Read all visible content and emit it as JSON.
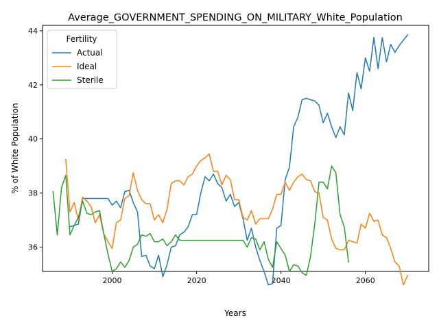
{
  "chart_data": {
    "type": "line",
    "title": "Average_GOVERNMENT_SPENDING_ON_MILITARY_White_Population",
    "xlabel": "Years",
    "ylabel": "% of White Population",
    "xlim": [
      1983.5,
      2075
    ],
    "ylim": [
      35.1,
      44.2
    ],
    "xticks": [
      2000,
      2020,
      2040,
      2060
    ],
    "yticks": [
      36,
      38,
      40,
      42,
      44
    ],
    "grid": false,
    "legend": {
      "title": "Fertility",
      "placement": "upper-left"
    },
    "series": [
      {
        "name": "Actual",
        "color": "#1f77b4",
        "x": [
          1990,
          1991,
          1992,
          1993,
          1994,
          1995,
          1996,
          1997,
          1998,
          1999,
          2000,
          2001,
          2002,
          2003,
          2004,
          2005,
          2006,
          2007,
          2008,
          2009,
          2010,
          2011,
          2012,
          2013,
          2014,
          2015,
          2016,
          2017,
          2018,
          2019,
          2020,
          2021,
          2022,
          2023,
          2024,
          2025,
          2026,
          2027,
          2028,
          2029,
          2030,
          2031,
          2032,
          2033,
          2034,
          2035,
          2036,
          2037,
          2038,
          2039,
          2040,
          2041,
          2042,
          2043,
          2044,
          2045,
          2046,
          2047,
          2048,
          2049,
          2050,
          2051,
          2052,
          2053,
          2054,
          2055,
          2056,
          2057,
          2058,
          2059,
          2060,
          2061,
          2062,
          2063,
          2064,
          2065,
          2066,
          2067,
          2068,
          2069,
          2070
        ],
        "y": [
          36.75,
          36.8,
          36.85,
          37.8,
          37.8,
          37.8,
          37.8,
          37.8,
          37.8,
          37.8,
          37.55,
          37.7,
          37.45,
          38.05,
          38.1,
          37.65,
          37.3,
          35.65,
          35.7,
          35.3,
          35.2,
          35.7,
          34.9,
          35.35,
          36.0,
          36.05,
          36.45,
          36.55,
          36.75,
          37.2,
          37.2,
          38.0,
          38.6,
          38.45,
          38.7,
          38.35,
          38.2,
          37.7,
          37.95,
          37.5,
          37.65,
          37.05,
          36.25,
          36.7,
          36.0,
          35.5,
          35.1,
          34.6,
          34.65,
          36.7,
          36.8,
          38.5,
          38.95,
          40.45,
          40.8,
          41.45,
          41.5,
          41.45,
          41.4,
          41.25,
          40.6,
          40.95,
          40.45,
          40.05,
          40.45,
          40.15,
          41.7,
          41.05,
          42.45,
          41.85,
          43.0,
          42.5,
          43.75,
          42.6,
          43.75,
          42.85,
          43.5,
          43.2,
          43.45,
          43.65,
          43.85
        ]
      },
      {
        "name": "Ideal",
        "color": "#ff7f0e",
        "x": [
          1989,
          1990,
          1991,
          1992,
          1993,
          1994,
          1995,
          1996,
          1997,
          1998,
          1999,
          2000,
          2001,
          2002,
          2003,
          2004,
          2005,
          2006,
          2007,
          2008,
          2009,
          2010,
          2011,
          2012,
          2013,
          2014,
          2015,
          2016,
          2017,
          2018,
          2019,
          2020,
          2021,
          2022,
          2023,
          2024,
          2025,
          2026,
          2027,
          2028,
          2029,
          2030,
          2031,
          2032,
          2033,
          2034,
          2035,
          2036,
          2037,
          2038,
          2039,
          2040,
          2041,
          2042,
          2043,
          2044,
          2045,
          2046,
          2047,
          2048,
          2049,
          2050,
          2051,
          2052,
          2053,
          2054,
          2055,
          2056,
          2057,
          2058,
          2059,
          2060,
          2061,
          2062,
          2063,
          2064,
          2065,
          2066,
          2067,
          2068,
          2069,
          2070
        ],
        "y": [
          39.25,
          37.3,
          37.65,
          37.0,
          37.85,
          37.7,
          37.5,
          36.9,
          37.2,
          36.5,
          36.2,
          35.95,
          36.9,
          37.0,
          37.8,
          37.9,
          38.75,
          38.1,
          37.75,
          37.6,
          37.6,
          37.0,
          37.2,
          36.9,
          37.4,
          38.35,
          38.45,
          38.45,
          38.3,
          38.6,
          38.7,
          39.0,
          39.2,
          39.3,
          39.45,
          38.8,
          38.8,
          38.3,
          38.65,
          38.5,
          37.75,
          37.75,
          37.1,
          37.0,
          37.35,
          36.85,
          37.05,
          37.05,
          37.05,
          37.4,
          37.95,
          37.95,
          38.4,
          38.1,
          38.4,
          38.6,
          38.7,
          38.5,
          38.45,
          38.05,
          38.0,
          37.1,
          37.0,
          36.3,
          35.95,
          35.9,
          35.9,
          36.25,
          36.2,
          36.15,
          36.85,
          36.7,
          37.25,
          36.95,
          37.0,
          36.45,
          36.35,
          35.95,
          35.45,
          35.3,
          34.6,
          34.95
        ]
      },
      {
        "name": "Sterile",
        "color": "#2ca02c",
        "x": [
          1986,
          1987,
          1988,
          1989,
          1990,
          1991,
          1992,
          1993,
          1994,
          1995,
          1996,
          1997,
          1998,
          1999,
          2000,
          2001,
          2002,
          2003,
          2004,
          2005,
          2006,
          2007,
          2008,
          2009,
          2010,
          2011,
          2012,
          2013,
          2014,
          2015,
          2016,
          2017,
          2018,
          2019,
          2020,
          2021,
          2022,
          2023,
          2024,
          2025,
          2026,
          2027,
          2028,
          2029,
          2030,
          2031,
          2032,
          2033,
          2034,
          2035,
          2036,
          2037,
          2038,
          2039,
          2040,
          2041,
          2042,
          2043,
          2044,
          2045,
          2046,
          2047,
          2048,
          2049,
          2050,
          2051,
          2052,
          2053,
          2054,
          2055,
          2056
        ],
        "y": [
          38.05,
          36.45,
          38.2,
          38.65,
          36.45,
          36.8,
          37.1,
          37.7,
          37.25,
          37.2,
          37.3,
          37.35,
          36.5,
          35.75,
          35.1,
          35.2,
          35.45,
          35.25,
          35.5,
          36.0,
          36.1,
          36.45,
          36.4,
          36.5,
          36.2,
          36.2,
          36.3,
          36.05,
          36.2,
          36.45,
          36.25,
          36.25,
          36.25,
          36.25,
          36.25,
          36.25,
          36.25,
          36.25,
          36.25,
          36.25,
          36.25,
          36.25,
          36.25,
          36.25,
          36.25,
          36.25,
          36.0,
          36.35,
          36.3,
          35.9,
          36.2,
          35.55,
          35.25,
          36.2,
          35.95,
          35.7,
          35.1,
          35.35,
          35.3,
          35.05,
          34.95,
          35.65,
          36.85,
          38.4,
          38.4,
          38.15,
          39.0,
          38.75,
          37.2,
          36.75,
          35.45
        ]
      }
    ]
  }
}
